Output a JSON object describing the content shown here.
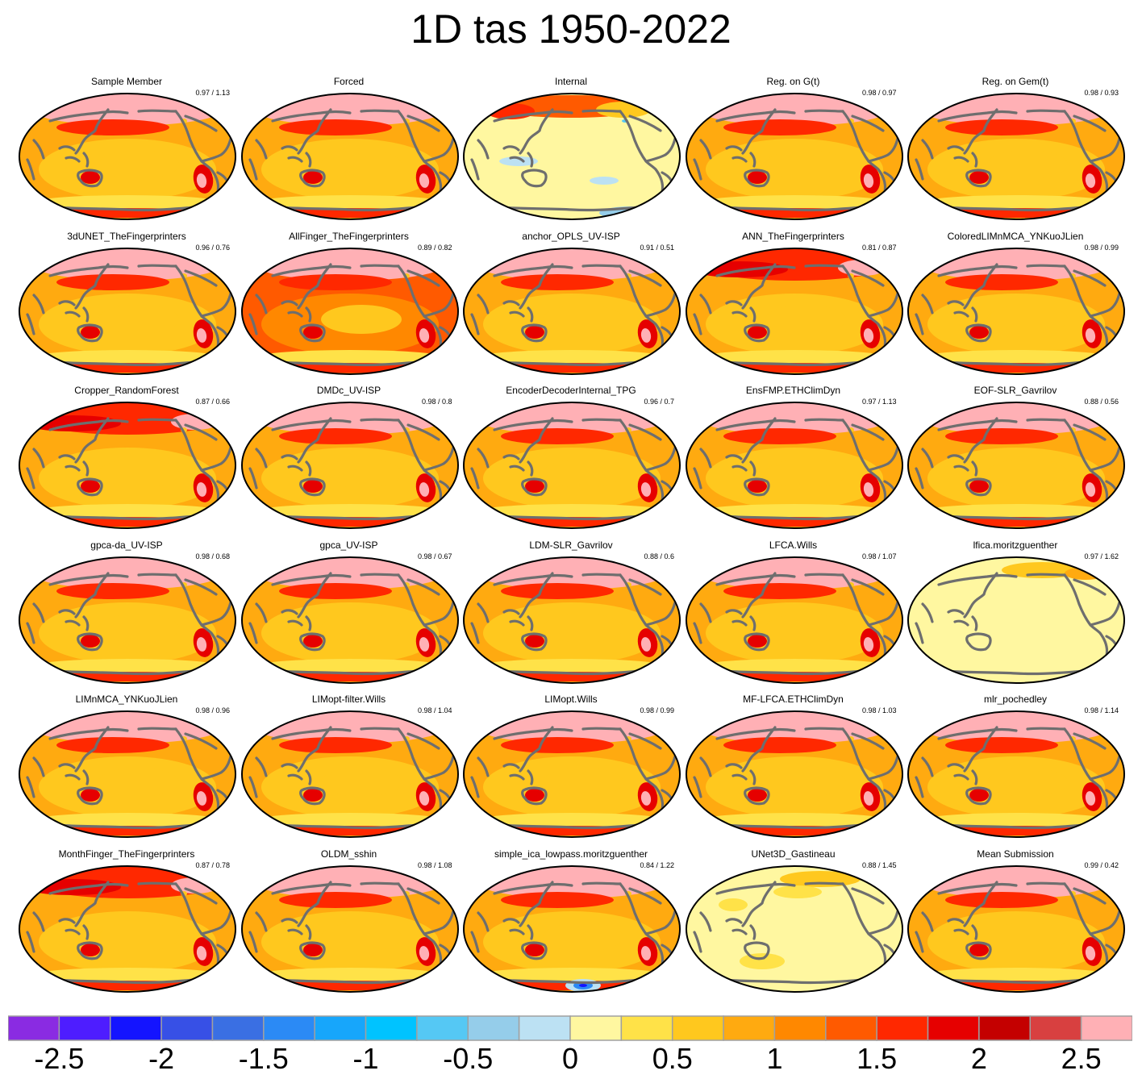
{
  "title": "1D tas 1950-2022",
  "colors": {
    "palette": [
      "#8a2be2",
      "#4e1dff",
      "#1414ff",
      "#3750e6",
      "#3a6fe3",
      "#2b8af5",
      "#17a6fb",
      "#00c3ff",
      "#55c8f4",
      "#95cdea",
      "#bce1f3",
      "#fff7a0",
      "#ffe248",
      "#ffc81e",
      "#ffaa10",
      "#ff8800",
      "#ff5a00",
      "#ff2800",
      "#e60000",
      "#c40000",
      "#d84040",
      "#ffb0b5"
    ],
    "land_high": "#ffb0b5",
    "coast": "#6e6e6e"
  },
  "chart_data": {
    "type": "heatmap",
    "title": "1D tas 1950-2022",
    "colorbar": {
      "min": -2.75,
      "max": 2.75,
      "step": 0.25,
      "tick_labels": [
        "-2.5",
        "-2",
        "-1.5",
        "-1",
        "-0.5",
        "0",
        "0.5",
        "1",
        "1.5",
        "2",
        "2.5"
      ],
      "tick_values": [
        -2.5,
        -2,
        -1.5,
        -1,
        -0.5,
        0,
        0.5,
        1,
        1.5,
        2,
        2.5
      ]
    },
    "panels": [
      {
        "name": "Sample Member",
        "score": "0.97 / 1.13",
        "style": "standard"
      },
      {
        "name": "Forced",
        "score": "",
        "style": "standard"
      },
      {
        "name": "Internal",
        "score": "",
        "style": "internal"
      },
      {
        "name": "Reg. on G(t)",
        "score": "0.98 / 0.97",
        "style": "standard"
      },
      {
        "name": "Reg. on Gem(t)",
        "score": "0.98 / 0.93",
        "style": "standard"
      },
      {
        "name": "3dUNET_TheFingerprinters",
        "score": "0.96 / 0.76",
        "style": "standard"
      },
      {
        "name": "AllFinger_TheFingerprinters",
        "score": "0.89 / 0.82",
        "style": "warm"
      },
      {
        "name": "anchor_OPLS_UV-ISP",
        "score": "0.91 / 0.51",
        "style": "standard"
      },
      {
        "name": "ANN_TheFingerprinters",
        "score": "0.81 / 0.87",
        "style": "north"
      },
      {
        "name": "ColoredLIMnMCA_YNKuoJLien",
        "score": "0.98 / 0.99",
        "style": "standard"
      },
      {
        "name": "Cropper_RandomForest",
        "score": "0.87 / 0.66",
        "style": "north"
      },
      {
        "name": "DMDc_UV-ISP",
        "score": "0.98 / 0.8",
        "style": "standard"
      },
      {
        "name": "EncoderDecoderInternal_TPG",
        "score": "0.96 / 0.7",
        "style": "standard"
      },
      {
        "name": "EnsFMP.ETHClimDyn",
        "score": "0.97 / 1.13",
        "style": "standard"
      },
      {
        "name": "EOF-SLR_Gavrilov",
        "score": "0.88 / 0.56",
        "style": "standard"
      },
      {
        "name": "gpca-da_UV-ISP",
        "score": "0.98 / 0.68",
        "style": "standard"
      },
      {
        "name": "gpca_UV-ISP",
        "score": "0.98 / 0.67",
        "style": "standard"
      },
      {
        "name": "LDM-SLR_Gavrilov",
        "score": "0.88 / 0.6",
        "style": "standard"
      },
      {
        "name": "LFCA.Wills",
        "score": "0.98 / 1.07",
        "style": "standard"
      },
      {
        "name": "lfica.moritzguenther",
        "score": "0.97 / 1.62",
        "style": "pale"
      },
      {
        "name": "LIMnMCA_YNKuoJLien",
        "score": "0.98 / 0.96",
        "style": "standard"
      },
      {
        "name": "LIMopt-filter.Wills",
        "score": "0.98 / 1.04",
        "style": "standard"
      },
      {
        "name": "LIMopt.Wills",
        "score": "0.98 / 0.99",
        "style": "standard"
      },
      {
        "name": "MF-LFCA.ETHClimDyn",
        "score": "0.98 / 1.03",
        "style": "standard"
      },
      {
        "name": "mlr_pochedley",
        "score": "0.98 / 1.14",
        "style": "standard"
      },
      {
        "name": "MonthFinger_TheFingerprinters",
        "score": "0.87 / 0.78",
        "style": "north"
      },
      {
        "name": "OLDM_sshin",
        "score": "0.98 / 1.08",
        "style": "standard"
      },
      {
        "name": "simple_ica_lowpass.moritzguenther",
        "score": "0.84 / 1.22",
        "style": "ica"
      },
      {
        "name": "UNet3D_Gastineau",
        "score": "0.88 / 1.45",
        "style": "pale2"
      },
      {
        "name": "Mean Submission",
        "score": "0.99 / 0.42",
        "style": "standard"
      }
    ]
  }
}
